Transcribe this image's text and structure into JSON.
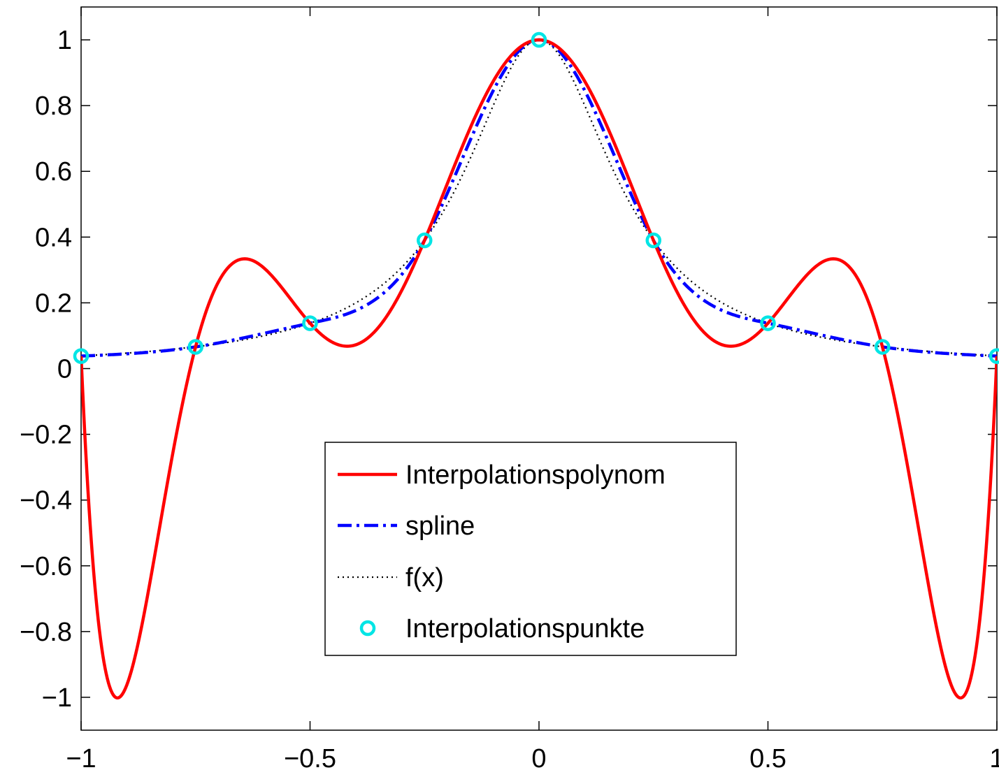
{
  "chart_data": {
    "type": "line",
    "title": "",
    "xlabel": "",
    "ylabel": "",
    "xlim": [
      -1,
      1
    ],
    "ylim": [
      -1.1,
      1.1
    ],
    "x_ticks": [
      -1,
      -0.5,
      0,
      0.5,
      1
    ],
    "x_tick_labels": [
      "−1",
      "−0.5",
      "0",
      "0.5",
      "1"
    ],
    "y_ticks": [
      1,
      0.8,
      0.6,
      0.4,
      0.2,
      0,
      -0.2,
      -0.4,
      -0.6,
      -0.8,
      -1
    ],
    "y_tick_labels": [
      "1",
      "0.8",
      "0.6",
      "0.4",
      "0.2",
      "0",
      "−0.2",
      "−0.4",
      "−0.6",
      "−0.8",
      "−1"
    ],
    "grid": false,
    "legend_position": "lower-center",
    "x": [
      -1,
      -0.75,
      -0.5,
      -0.25,
      0,
      0.25,
      0.5,
      0.75,
      1
    ],
    "series": [
      {
        "name": "Interpolationspolynom",
        "style": "solid",
        "color": "#ff0000",
        "x": [
          -1,
          -0.9,
          -0.8,
          -0.75,
          -0.7,
          -0.64,
          -0.6,
          -0.5,
          -0.42,
          -0.35,
          -0.25,
          -0.15,
          0,
          0.15,
          0.25,
          0.35,
          0.42,
          0.5,
          0.6,
          0.64,
          0.7,
          0.75,
          0.8,
          0.9,
          1
        ],
        "values": [
          0.038,
          -1.0,
          -0.2,
          0.066,
          0.26,
          0.333,
          0.3,
          0.138,
          0.066,
          0.13,
          0.39,
          0.78,
          1.0,
          0.78,
          0.39,
          0.13,
          0.066,
          0.138,
          0.3,
          0.333,
          0.26,
          0.066,
          -0.2,
          -1.0,
          0.038
        ]
      },
      {
        "name": "spline",
        "style": "dash-dot",
        "color": "#0000ff",
        "x": [
          -1,
          -0.75,
          -0.5,
          -0.25,
          0,
          0.25,
          0.5,
          0.75,
          1
        ],
        "values": [
          0.038,
          0.066,
          0.138,
          0.39,
          1.0,
          0.39,
          0.138,
          0.066,
          0.038
        ]
      },
      {
        "name": "f(x)",
        "style": "dotted",
        "color": "#000000",
        "function": "1/(1+25x^2)"
      },
      {
        "name": "Interpolationspunkte",
        "style": "markers",
        "marker": "circle",
        "color": "#00e5e5",
        "x": [
          -1,
          -0.75,
          -0.5,
          -0.25,
          0,
          0.25,
          0.5,
          0.75,
          1
        ],
        "values": [
          0.038,
          0.066,
          0.138,
          0.39,
          1.0,
          0.39,
          0.138,
          0.066,
          0.038
        ]
      }
    ]
  }
}
